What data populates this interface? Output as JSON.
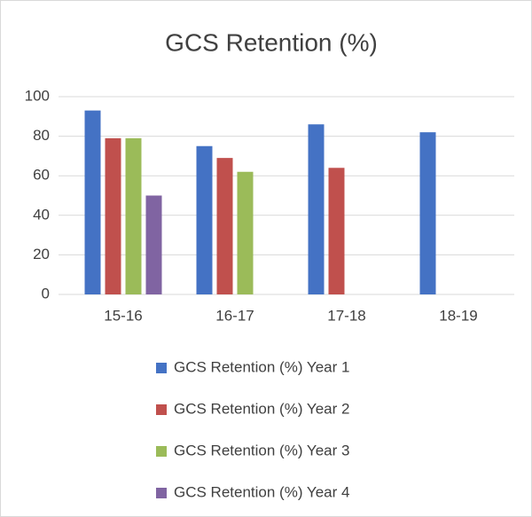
{
  "chart_data": {
    "type": "bar",
    "title": "GCS Retention (%)",
    "categories": [
      "15-16",
      "16-17",
      "17-18",
      "18-19"
    ],
    "series": [
      {
        "name": "GCS Retention (%) Year 1",
        "color": "#4472c4",
        "values": [
          93,
          75,
          86,
          82
        ]
      },
      {
        "name": "GCS Retention (%) Year 2",
        "color": "#c0504d",
        "values": [
          79,
          69,
          64,
          null
        ]
      },
      {
        "name": "GCS Retention (%) Year 3",
        "color": "#9bbb59",
        "values": [
          79,
          62,
          null,
          null
        ]
      },
      {
        "name": "GCS Retention (%) Year 4",
        "color": "#8064a2",
        "values": [
          50,
          null,
          null,
          null
        ]
      }
    ],
    "ylim": [
      0,
      100
    ],
    "yticks": [
      0,
      20,
      40,
      60,
      80,
      100
    ],
    "grid": true,
    "legend": "bottom"
  }
}
